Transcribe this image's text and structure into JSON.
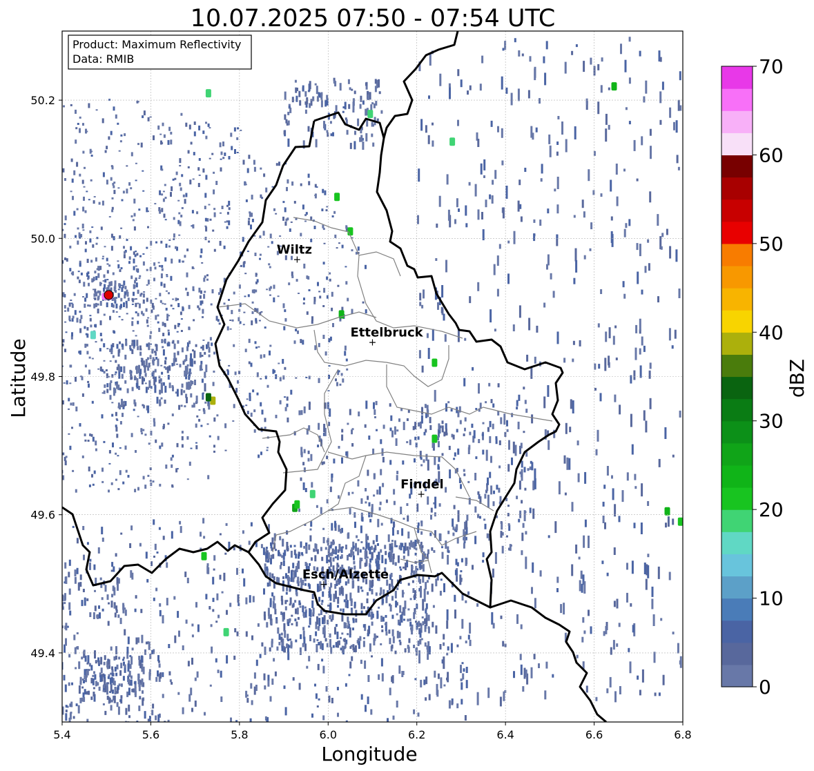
{
  "title": "10.07.2025 07:50 - 07:54 UTC",
  "info": {
    "product": "Product: Maximum Reflectivity",
    "data_source": "Data: RMIB"
  },
  "axes": {
    "xlabel": "Longitude",
    "ylabel": "Latitude",
    "xlim": [
      5.4,
      6.8
    ],
    "ylim": [
      49.3,
      50.3
    ],
    "xticks": [
      5.4,
      5.6,
      5.8,
      6.0,
      6.2,
      6.4,
      6.6,
      6.8
    ],
    "xtick_labels": [
      "5.4",
      "5.6",
      "5.8",
      "6.0",
      "6.2",
      "6.4",
      "6.6",
      "6.8"
    ],
    "yticks": [
      49.4,
      49.6,
      49.8,
      50.0,
      50.2
    ],
    "ytick_labels": [
      "49.4",
      "49.6",
      "49.8",
      "50.0",
      "50.2"
    ],
    "grid": true
  },
  "colorbar": {
    "label": "dBZ",
    "range": [
      0,
      70
    ],
    "step": 2.5,
    "tick_values": [
      0,
      10,
      20,
      30,
      40,
      50,
      60,
      70
    ],
    "tick_labels": [
      "0",
      "10",
      "20",
      "30",
      "40",
      "50",
      "60",
      "70"
    ],
    "colors": [
      "#6878a8",
      "#58689c",
      "#4a64a4",
      "#4a7cb8",
      "#5ca0c8",
      "#68c4dc",
      "#60d8c4",
      "#40d474",
      "#18c420",
      "#10b418",
      "#10a418",
      "#0c9018",
      "#0a7c14",
      "#0a6410",
      "#4a7c0c",
      "#acb00c",
      "#f8d400",
      "#f8b400",
      "#f89800",
      "#f87c00",
      "#e80000",
      "#c80000",
      "#a80000",
      "#780000",
      "#f8e0f8",
      "#f8b0f8",
      "#f870f8",
      "#e838e8"
    ]
  },
  "cities": [
    {
      "name": "Wiltz",
      "lon": 5.93,
      "lat": 49.97
    },
    {
      "name": "Ettelbruck",
      "lon": 6.1,
      "lat": 49.85
    },
    {
      "name": "Findel",
      "lon": 6.21,
      "lat": 49.63
    },
    {
      "name": "Esch/Alzette",
      "lon": 5.99,
      "lat": 49.5
    }
  ],
  "radar_site": {
    "lon": 5.505,
    "lat": 49.918,
    "color": "#dd0000"
  },
  "map_colors": {
    "border": "#000000",
    "canton_lines": "#808080",
    "grid": "#b0b0b0"
  },
  "precipitation_cells": [
    {
      "lon": 5.74,
      "lat": 49.765,
      "dbz": 38
    },
    {
      "lon": 5.73,
      "lat": 49.77,
      "dbz": 33
    },
    {
      "lon": 5.925,
      "lat": 49.61,
      "dbz": 26
    },
    {
      "lon": 5.93,
      "lat": 49.615,
      "dbz": 22
    },
    {
      "lon": 6.24,
      "lat": 49.71,
      "dbz": 20
    },
    {
      "lon": 6.765,
      "lat": 49.605,
      "dbz": 24
    },
    {
      "lon": 6.795,
      "lat": 49.59,
      "dbz": 22
    },
    {
      "lon": 6.645,
      "lat": 50.22,
      "dbz": 24
    },
    {
      "lon": 6.05,
      "lat": 50.01,
      "dbz": 22
    },
    {
      "lon": 6.03,
      "lat": 49.89,
      "dbz": 24
    },
    {
      "lon": 6.02,
      "lat": 50.06,
      "dbz": 22
    },
    {
      "lon": 6.24,
      "lat": 49.82,
      "dbz": 22
    },
    {
      "lon": 5.965,
      "lat": 49.63,
      "dbz": 18
    },
    {
      "lon": 5.72,
      "lat": 49.54,
      "dbz": 20
    },
    {
      "lon": 5.77,
      "lat": 49.43,
      "dbz": 18
    },
    {
      "lon": 5.47,
      "lat": 49.86,
      "dbz": 16
    },
    {
      "lon": 6.28,
      "lat": 50.14,
      "dbz": 18
    },
    {
      "lon": 6.095,
      "lat": 50.18,
      "dbz": 18
    },
    {
      "lon": 5.73,
      "lat": 50.21,
      "dbz": 18
    }
  ]
}
